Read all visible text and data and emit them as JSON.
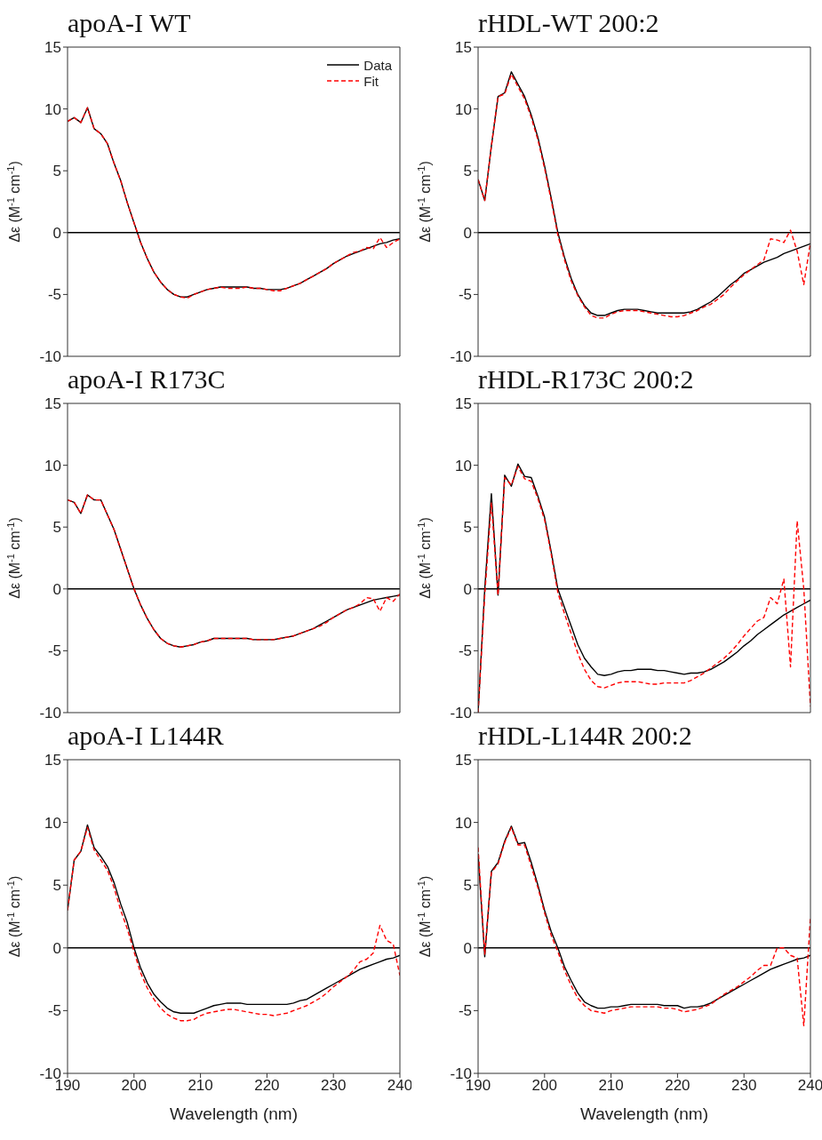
{
  "chart_data": [
    {
      "type": "line",
      "title": "apoA-I WT",
      "ylabel": "Δε (M$^{-1}$ cm$^{-1}$)",
      "x": [
        190,
        191,
        192,
        193,
        194,
        195,
        196,
        197,
        198,
        199,
        200,
        201,
        202,
        203,
        204,
        205,
        206,
        207,
        208,
        209,
        210,
        211,
        212,
        213,
        214,
        215,
        216,
        217,
        218,
        219,
        220,
        221,
        222,
        223,
        224,
        225,
        226,
        227,
        228,
        229,
        230,
        231,
        232,
        233,
        234,
        235,
        236,
        237,
        238,
        239,
        240
      ],
      "xlim": [
        190,
        240
      ],
      "xticks": [
        190,
        200,
        210,
        220,
        230,
        240
      ],
      "ylim": [
        -10,
        15
      ],
      "yticks": [
        -10,
        -5,
        0,
        5,
        10,
        15
      ],
      "tick_labels": "y",
      "legend": "top right",
      "grid": false,
      "ref_lines": [
        {
          "axis": "y",
          "value": 0,
          "color": "#000000"
        }
      ],
      "series": [
        {
          "name": "Data",
          "color": "#000000",
          "line_style": "solid",
          "values": [
            9.0,
            9.3,
            8.9,
            10.1,
            8.4,
            8.0,
            7.2,
            5.6,
            4.2,
            2.4,
            0.8,
            -0.8,
            -2.1,
            -3.2,
            -4.0,
            -4.6,
            -5.0,
            -5.2,
            -5.2,
            -5.0,
            -4.8,
            -4.6,
            -4.5,
            -4.4,
            -4.4,
            -4.4,
            -4.4,
            -4.4,
            -4.5,
            -4.5,
            -4.6,
            -4.6,
            -4.6,
            -4.5,
            -4.3,
            -4.1,
            -3.8,
            -3.5,
            -3.2,
            -2.9,
            -2.5,
            -2.2,
            -1.9,
            -1.7,
            -1.5,
            -1.3,
            -1.1,
            -0.9,
            -0.8,
            -0.6,
            -0.5
          ]
        },
        {
          "name": "Fit",
          "color": "#ff0000",
          "line_style": "dashed",
          "values": [
            9.0,
            9.3,
            8.9,
            10.1,
            8.4,
            8.0,
            7.2,
            5.6,
            4.2,
            2.4,
            0.8,
            -0.8,
            -2.1,
            -3.2,
            -4.0,
            -4.6,
            -5.0,
            -5.2,
            -5.3,
            -5.0,
            -4.8,
            -4.6,
            -4.5,
            -4.4,
            -4.5,
            -4.5,
            -4.5,
            -4.4,
            -4.5,
            -4.5,
            -4.6,
            -4.7,
            -4.7,
            -4.5,
            -4.3,
            -4.1,
            -3.8,
            -3.5,
            -3.2,
            -2.9,
            -2.5,
            -2.2,
            -1.9,
            -1.6,
            -1.5,
            -1.2,
            -1.3,
            -0.4,
            -1.2,
            -0.8,
            -0.5
          ]
        }
      ]
    },
    {
      "type": "line",
      "title": "rHDL-WT 200:2",
      "ylabel": "Δε (M$^{-1}$ cm$^{-1}$)",
      "x": [
        190,
        191,
        192,
        193,
        194,
        195,
        196,
        197,
        198,
        199,
        200,
        201,
        202,
        203,
        204,
        205,
        206,
        207,
        208,
        209,
        210,
        211,
        212,
        213,
        214,
        215,
        216,
        217,
        218,
        219,
        220,
        221,
        222,
        223,
        224,
        225,
        226,
        227,
        228,
        229,
        230,
        231,
        232,
        233,
        234,
        235,
        236,
        237,
        238,
        239,
        240
      ],
      "xlim": [
        190,
        240
      ],
      "xticks": [
        190,
        200,
        210,
        220,
        230,
        240
      ],
      "ylim": [
        -10,
        15
      ],
      "yticks": [
        -10,
        -5,
        0,
        5,
        10,
        15
      ],
      "tick_labels": "y",
      "grid": false,
      "ref_lines": [
        {
          "axis": "y",
          "value": 0,
          "color": "#000000"
        }
      ],
      "series": [
        {
          "color": "#000000",
          "line_style": "solid",
          "values": [
            4.3,
            2.6,
            7.0,
            11.0,
            11.3,
            13.0,
            12.0,
            11.0,
            9.5,
            7.7,
            5.4,
            2.8,
            0.0,
            -2.0,
            -3.7,
            -5.0,
            -5.9,
            -6.5,
            -6.7,
            -6.7,
            -6.5,
            -6.3,
            -6.2,
            -6.2,
            -6.2,
            -6.3,
            -6.4,
            -6.5,
            -6.5,
            -6.5,
            -6.5,
            -6.5,
            -6.4,
            -6.2,
            -5.9,
            -5.6,
            -5.2,
            -4.7,
            -4.2,
            -3.8,
            -3.3,
            -3.0,
            -2.7,
            -2.4,
            -2.2,
            -2.0,
            -1.7,
            -1.5,
            -1.3,
            -1.1,
            -0.9
          ]
        },
        {
          "color": "#ff0000",
          "line_style": "dashed",
          "values": [
            4.3,
            2.6,
            7.0,
            11.0,
            11.2,
            12.8,
            11.8,
            10.8,
            9.3,
            7.5,
            5.2,
            2.6,
            -0.2,
            -2.2,
            -3.9,
            -5.1,
            -6.0,
            -6.7,
            -6.9,
            -6.9,
            -6.6,
            -6.4,
            -6.3,
            -6.3,
            -6.3,
            -6.4,
            -6.5,
            -6.6,
            -6.7,
            -6.8,
            -6.8,
            -6.7,
            -6.5,
            -6.3,
            -6.0,
            -5.8,
            -5.4,
            -5.0,
            -4.4,
            -3.9,
            -3.4,
            -3.0,
            -2.6,
            -2.2,
            -0.5,
            -0.6,
            -0.8,
            0.2,
            -1.5,
            -4.2,
            -0.8
          ]
        }
      ]
    },
    {
      "type": "line",
      "title": "apoA-I R173C",
      "ylabel": "Δε (M$^{-1}$ cm$^{-1}$)",
      "x": [
        190,
        191,
        192,
        193,
        194,
        195,
        196,
        197,
        198,
        199,
        200,
        201,
        202,
        203,
        204,
        205,
        206,
        207,
        208,
        209,
        210,
        211,
        212,
        213,
        214,
        215,
        216,
        217,
        218,
        219,
        220,
        221,
        222,
        223,
        224,
        225,
        226,
        227,
        228,
        229,
        230,
        231,
        232,
        233,
        234,
        235,
        236,
        237,
        238,
        239,
        240
      ],
      "xlim": [
        190,
        240
      ],
      "xticks": [
        190,
        200,
        210,
        220,
        230,
        240
      ],
      "ylim": [
        -10,
        15
      ],
      "yticks": [
        -10,
        -5,
        0,
        5,
        10,
        15
      ],
      "tick_labels": "y",
      "grid": false,
      "ref_lines": [
        {
          "axis": "y",
          "value": 0,
          "color": "#000000"
        }
      ],
      "series": [
        {
          "color": "#000000",
          "line_style": "solid",
          "values": [
            7.2,
            7.0,
            6.1,
            7.6,
            7.2,
            7.2,
            6.0,
            4.8,
            3.2,
            1.6,
            0.0,
            -1.3,
            -2.4,
            -3.3,
            -4.0,
            -4.4,
            -4.6,
            -4.7,
            -4.6,
            -4.5,
            -4.3,
            -4.2,
            -4.0,
            -4.0,
            -4.0,
            -4.0,
            -4.0,
            -4.0,
            -4.1,
            -4.1,
            -4.1,
            -4.1,
            -4.0,
            -3.9,
            -3.8,
            -3.6,
            -3.4,
            -3.2,
            -2.9,
            -2.6,
            -2.3,
            -2.0,
            -1.7,
            -1.5,
            -1.3,
            -1.1,
            -0.9,
            -0.8,
            -0.7,
            -0.6,
            -0.5
          ]
        },
        {
          "color": "#ff0000",
          "line_style": "dashed",
          "values": [
            7.2,
            7.0,
            6.1,
            7.6,
            7.2,
            7.2,
            6.0,
            4.8,
            3.2,
            1.6,
            0.0,
            -1.3,
            -2.4,
            -3.3,
            -4.0,
            -4.4,
            -4.6,
            -4.7,
            -4.6,
            -4.5,
            -4.3,
            -4.2,
            -4.0,
            -4.0,
            -4.0,
            -4.0,
            -4.0,
            -4.0,
            -4.1,
            -4.1,
            -4.1,
            -4.1,
            -4.0,
            -3.9,
            -3.8,
            -3.6,
            -3.4,
            -3.2,
            -3.0,
            -2.7,
            -2.3,
            -2.0,
            -1.7,
            -1.5,
            -1.2,
            -0.7,
            -0.8,
            -1.8,
            -0.7,
            -1.0,
            -0.4
          ]
        }
      ]
    },
    {
      "type": "line",
      "title": "rHDL-R173C 200:2",
      "ylabel": "Δε (M$^{-1}$ cm$^{-1}$)",
      "x": [
        190,
        191,
        192,
        193,
        194,
        195,
        196,
        197,
        198,
        199,
        200,
        201,
        202,
        203,
        204,
        205,
        206,
        207,
        208,
        209,
        210,
        211,
        212,
        213,
        214,
        215,
        216,
        217,
        218,
        219,
        220,
        221,
        222,
        223,
        224,
        225,
        226,
        227,
        228,
        229,
        230,
        231,
        232,
        233,
        234,
        235,
        236,
        237,
        238,
        239,
        240
      ],
      "xlim": [
        190,
        240
      ],
      "xticks": [
        190,
        200,
        210,
        220,
        230,
        240
      ],
      "ylim": [
        -10,
        15
      ],
      "yticks": [
        -10,
        -5,
        0,
        5,
        10,
        15
      ],
      "tick_labels": "y",
      "grid": false,
      "ref_lines": [
        {
          "axis": "y",
          "value": 0,
          "color": "#000000"
        }
      ],
      "series": [
        {
          "color": "#000000",
          "line_style": "solid",
          "values": [
            -10.0,
            0.0,
            7.7,
            -0.5,
            9.2,
            8.3,
            10.1,
            9.1,
            9.0,
            7.5,
            5.8,
            3.0,
            0.0,
            -1.5,
            -3.0,
            -4.5,
            -5.6,
            -6.3,
            -6.9,
            -7.0,
            -6.9,
            -6.7,
            -6.6,
            -6.6,
            -6.5,
            -6.5,
            -6.5,
            -6.6,
            -6.6,
            -6.7,
            -6.8,
            -6.9,
            -6.8,
            -6.8,
            -6.7,
            -6.5,
            -6.2,
            -5.9,
            -5.5,
            -5.1,
            -4.6,
            -4.2,
            -3.7,
            -3.3,
            -2.9,
            -2.5,
            -2.1,
            -1.8,
            -1.5,
            -1.2,
            -0.9
          ]
        },
        {
          "color": "#ff0000",
          "line_style": "dashed",
          "values": [
            -10.0,
            -0.5,
            7.0,
            -0.5,
            9.0,
            8.4,
            9.9,
            8.9,
            8.7,
            7.3,
            5.6,
            2.8,
            -0.3,
            -2.0,
            -3.6,
            -5.2,
            -6.5,
            -7.4,
            -7.9,
            -8.0,
            -7.8,
            -7.6,
            -7.5,
            -7.5,
            -7.5,
            -7.6,
            -7.7,
            -7.7,
            -7.6,
            -7.6,
            -7.6,
            -7.6,
            -7.4,
            -7.1,
            -6.8,
            -6.4,
            -6.0,
            -5.6,
            -5.1,
            -4.5,
            -3.8,
            -3.2,
            -2.6,
            -2.3,
            -0.7,
            -1.2,
            0.8,
            -6.3,
            5.5,
            0.0,
            -9.5
          ]
        }
      ]
    },
    {
      "type": "line",
      "title": "apoA-I L144R",
      "xlabel": "Wavelength (nm)",
      "ylabel": "Δε (M$^{-1}$ cm$^{-1}$)",
      "x": [
        190,
        191,
        192,
        193,
        194,
        195,
        196,
        197,
        198,
        199,
        200,
        201,
        202,
        203,
        204,
        205,
        206,
        207,
        208,
        209,
        210,
        211,
        212,
        213,
        214,
        215,
        216,
        217,
        218,
        219,
        220,
        221,
        222,
        223,
        224,
        225,
        226,
        227,
        228,
        229,
        230,
        231,
        232,
        233,
        234,
        235,
        236,
        237,
        238,
        239,
        240
      ],
      "xlim": [
        190,
        240
      ],
      "xticks": [
        190,
        200,
        210,
        220,
        230,
        240
      ],
      "ylim": [
        -10,
        15
      ],
      "yticks": [
        -10,
        -5,
        0,
        5,
        10,
        15
      ],
      "grid": false,
      "ref_lines": [
        {
          "axis": "y",
          "value": 0,
          "color": "#000000"
        }
      ],
      "series": [
        {
          "color": "#000000",
          "line_style": "solid",
          "values": [
            3.0,
            7.0,
            7.7,
            9.8,
            8.0,
            7.3,
            6.5,
            5.2,
            3.5,
            2.0,
            0.0,
            -1.6,
            -2.8,
            -3.7,
            -4.3,
            -4.8,
            -5.1,
            -5.2,
            -5.2,
            -5.2,
            -5.0,
            -4.8,
            -4.6,
            -4.5,
            -4.4,
            -4.4,
            -4.4,
            -4.5,
            -4.5,
            -4.5,
            -4.5,
            -4.5,
            -4.5,
            -4.5,
            -4.4,
            -4.2,
            -4.1,
            -3.8,
            -3.5,
            -3.2,
            -2.9,
            -2.6,
            -2.3,
            -2.0,
            -1.7,
            -1.5,
            -1.3,
            -1.1,
            -0.9,
            -0.8,
            -0.6
          ]
        },
        {
          "color": "#ff0000",
          "line_style": "dashed",
          "values": [
            3.0,
            7.0,
            7.7,
            9.6,
            7.8,
            7.0,
            6.2,
            4.8,
            3.0,
            1.5,
            -0.3,
            -2.0,
            -3.2,
            -4.1,
            -4.8,
            -5.3,
            -5.6,
            -5.8,
            -5.8,
            -5.7,
            -5.4,
            -5.2,
            -5.1,
            -5.0,
            -4.9,
            -4.9,
            -5.0,
            -5.1,
            -5.2,
            -5.3,
            -5.3,
            -5.4,
            -5.3,
            -5.2,
            -5.0,
            -4.8,
            -4.6,
            -4.3,
            -4.0,
            -3.6,
            -3.1,
            -2.7,
            -2.3,
            -1.8,
            -1.1,
            -0.9,
            -0.4,
            1.8,
            0.6,
            0.3,
            -2.2
          ]
        }
      ]
    },
    {
      "type": "line",
      "title": "rHDL-L144R 200:2",
      "xlabel": "Wavelength (nm)",
      "ylabel": "Δε (M$^{-1}$ cm$^{-1}$)",
      "x": [
        190,
        191,
        192,
        193,
        194,
        195,
        196,
        197,
        198,
        199,
        200,
        201,
        202,
        203,
        204,
        205,
        206,
        207,
        208,
        209,
        210,
        211,
        212,
        213,
        214,
        215,
        216,
        217,
        218,
        219,
        220,
        221,
        222,
        223,
        224,
        225,
        226,
        227,
        228,
        229,
        230,
        231,
        232,
        233,
        234,
        235,
        236,
        237,
        238,
        239,
        240
      ],
      "xlim": [
        190,
        240
      ],
      "xticks": [
        190,
        200,
        210,
        220,
        230,
        240
      ],
      "ylim": [
        -10,
        15
      ],
      "yticks": [
        -10,
        -5,
        0,
        5,
        10,
        15
      ],
      "grid": false,
      "ref_lines": [
        {
          "axis": "y",
          "value": 0,
          "color": "#000000"
        }
      ],
      "series": [
        {
          "color": "#000000",
          "line_style": "solid",
          "values": [
            7.5,
            -0.7,
            6.1,
            6.8,
            8.5,
            9.7,
            8.3,
            8.4,
            6.8,
            5.0,
            3.0,
            1.3,
            0.0,
            -1.5,
            -2.6,
            -3.6,
            -4.3,
            -4.6,
            -4.8,
            -4.8,
            -4.7,
            -4.7,
            -4.6,
            -4.5,
            -4.5,
            -4.5,
            -4.5,
            -4.5,
            -4.6,
            -4.6,
            -4.6,
            -4.8,
            -4.7,
            -4.7,
            -4.6,
            -4.4,
            -4.1,
            -3.8,
            -3.5,
            -3.2,
            -2.9,
            -2.6,
            -2.3,
            -2.0,
            -1.7,
            -1.5,
            -1.3,
            -1.1,
            -0.9,
            -0.8,
            -0.6
          ]
        },
        {
          "color": "#ff0000",
          "line_style": "dashed",
          "values": [
            8.0,
            -0.5,
            6.0,
            6.7,
            8.4,
            9.6,
            8.2,
            8.2,
            6.5,
            4.8,
            2.8,
            1.0,
            -0.3,
            -1.8,
            -3.0,
            -4.0,
            -4.6,
            -5.0,
            -5.1,
            -5.2,
            -5.0,
            -4.9,
            -4.8,
            -4.7,
            -4.7,
            -4.7,
            -4.7,
            -4.7,
            -4.8,
            -4.8,
            -4.9,
            -5.1,
            -5.0,
            -4.9,
            -4.7,
            -4.5,
            -4.1,
            -3.7,
            -3.4,
            -3.1,
            -2.7,
            -2.3,
            -1.8,
            -1.4,
            -1.4,
            0.0,
            0.0,
            -0.6,
            -0.8,
            -6.2,
            2.5
          ]
        }
      ]
    }
  ]
}
